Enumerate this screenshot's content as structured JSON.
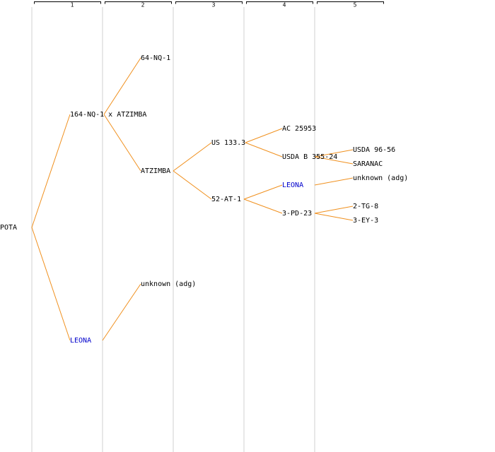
{
  "columns": [
    "1",
    "2",
    "3",
    "4",
    "5"
  ],
  "nodes": [
    {
      "label": "POTA"
    },
    {
      "label": "164-NQ-1 x ATZIMBA"
    },
    {
      "label": "LEONA"
    },
    {
      "label": "64-NQ-1"
    },
    {
      "label": "ATZIMBA"
    },
    {
      "label": "unknown (adg)"
    },
    {
      "label": "US 133.3"
    },
    {
      "label": "52-AT-1"
    },
    {
      "label": "AC 25953"
    },
    {
      "label": "USDA B 355-24"
    },
    {
      "label": "LEONA"
    },
    {
      "label": "3-PD-23"
    },
    {
      "label": "USDA 96-56"
    },
    {
      "label": "SARANAC"
    },
    {
      "label": "unknown (adg)"
    },
    {
      "label": "2-TG-8"
    },
    {
      "label": "3-EY-3"
    }
  ]
}
